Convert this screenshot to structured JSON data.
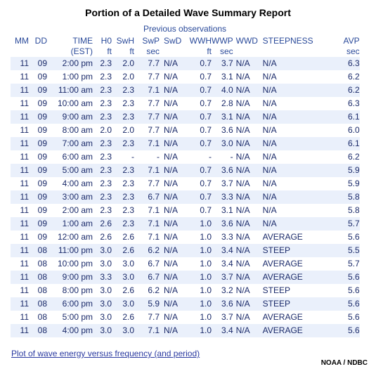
{
  "title": "Portion of a Detailed Wave Summary Report",
  "subtitle": "Previous observations",
  "header_row1": [
    "MM",
    "DD",
    "TIME",
    "H0",
    "SwH",
    "SwP",
    "SwD",
    "WWH",
    "WWP",
    "WWD",
    "STEEPNESS",
    "AVP"
  ],
  "header_row2": [
    "",
    "",
    "(EST)",
    "ft",
    "ft",
    "sec",
    "",
    "ft",
    "sec",
    "",
    "",
    "sec"
  ],
  "rows": [
    [
      "11",
      "09",
      "2:00 pm",
      "2.3",
      "2.0",
      "7.7",
      "N/A",
      "0.7",
      "3.7",
      "N/A",
      "N/A",
      "6.3"
    ],
    [
      "11",
      "09",
      "1:00 pm",
      "2.3",
      "2.0",
      "7.7",
      "N/A",
      "0.7",
      "3.1",
      "N/A",
      "N/A",
      "6.2"
    ],
    [
      "11",
      "09",
      "11:00 am",
      "2.3",
      "2.3",
      "7.1",
      "N/A",
      "0.7",
      "4.0",
      "N/A",
      "N/A",
      "6.2"
    ],
    [
      "11",
      "09",
      "10:00 am",
      "2.3",
      "2.3",
      "7.7",
      "N/A",
      "0.7",
      "2.8",
      "N/A",
      "N/A",
      "6.3"
    ],
    [
      "11",
      "09",
      "9:00 am",
      "2.3",
      "2.3",
      "7.7",
      "N/A",
      "0.7",
      "3.1",
      "N/A",
      "N/A",
      "6.1"
    ],
    [
      "11",
      "09",
      "8:00 am",
      "2.0",
      "2.0",
      "7.7",
      "N/A",
      "0.7",
      "3.6",
      "N/A",
      "N/A",
      "6.0"
    ],
    [
      "11",
      "09",
      "7:00 am",
      "2.3",
      "2.3",
      "7.1",
      "N/A",
      "0.7",
      "3.0",
      "N/A",
      "N/A",
      "6.1"
    ],
    [
      "11",
      "09",
      "6:00 am",
      "2.3",
      "-",
      "-",
      "N/A",
      "-",
      "-",
      "N/A",
      "N/A",
      "6.2"
    ],
    [
      "11",
      "09",
      "5:00 am",
      "2.3",
      "2.3",
      "7.1",
      "N/A",
      "0.7",
      "3.6",
      "N/A",
      "N/A",
      "5.9"
    ],
    [
      "11",
      "09",
      "4:00 am",
      "2.3",
      "2.3",
      "7.7",
      "N/A",
      "0.7",
      "3.7",
      "N/A",
      "N/A",
      "5.9"
    ],
    [
      "11",
      "09",
      "3:00 am",
      "2.3",
      "2.3",
      "6.7",
      "N/A",
      "0.7",
      "3.3",
      "N/A",
      "N/A",
      "5.8"
    ],
    [
      "11",
      "09",
      "2:00 am",
      "2.3",
      "2.3",
      "7.1",
      "N/A",
      "0.7",
      "3.1",
      "N/A",
      "N/A",
      "5.8"
    ],
    [
      "11",
      "09",
      "1:00 am",
      "2.6",
      "2.3",
      "7.1",
      "N/A",
      "1.0",
      "3.6",
      "N/A",
      "N/A",
      "5.7"
    ],
    [
      "11",
      "09",
      "12:00 am",
      "2.6",
      "2.6",
      "7.1",
      "N/A",
      "1.0",
      "3.3",
      "N/A",
      "AVERAGE",
      "5.6"
    ],
    [
      "11",
      "08",
      "11:00 pm",
      "3.0",
      "2.6",
      "6.2",
      "N/A",
      "1.0",
      "3.4",
      "N/A",
      "STEEP",
      "5.5"
    ],
    [
      "11",
      "08",
      "10:00 pm",
      "3.0",
      "3.0",
      "6.7",
      "N/A",
      "1.0",
      "3.4",
      "N/A",
      "AVERAGE",
      "5.7"
    ],
    [
      "11",
      "08",
      "9:00 pm",
      "3.3",
      "3.0",
      "6.7",
      "N/A",
      "1.0",
      "3.7",
      "N/A",
      "AVERAGE",
      "5.6"
    ],
    [
      "11",
      "08",
      "8:00 pm",
      "3.0",
      "2.6",
      "6.2",
      "N/A",
      "1.0",
      "3.2",
      "N/A",
      "STEEP",
      "5.6"
    ],
    [
      "11",
      "08",
      "6:00 pm",
      "3.0",
      "3.0",
      "5.9",
      "N/A",
      "1.0",
      "3.6",
      "N/A",
      "STEEP",
      "5.6"
    ],
    [
      "11",
      "08",
      "5:00 pm",
      "3.0",
      "2.6",
      "7.7",
      "N/A",
      "1.0",
      "3.7",
      "N/A",
      "AVERAGE",
      "5.6"
    ],
    [
      "11",
      "08",
      "4:00 pm",
      "3.0",
      "3.0",
      "7.1",
      "N/A",
      "1.0",
      "3.4",
      "N/A",
      "AVERAGE",
      "5.6"
    ]
  ],
  "link_text": "Plot of wave energy versus frequency (and period)",
  "credit": "NOAA / NDBC"
}
